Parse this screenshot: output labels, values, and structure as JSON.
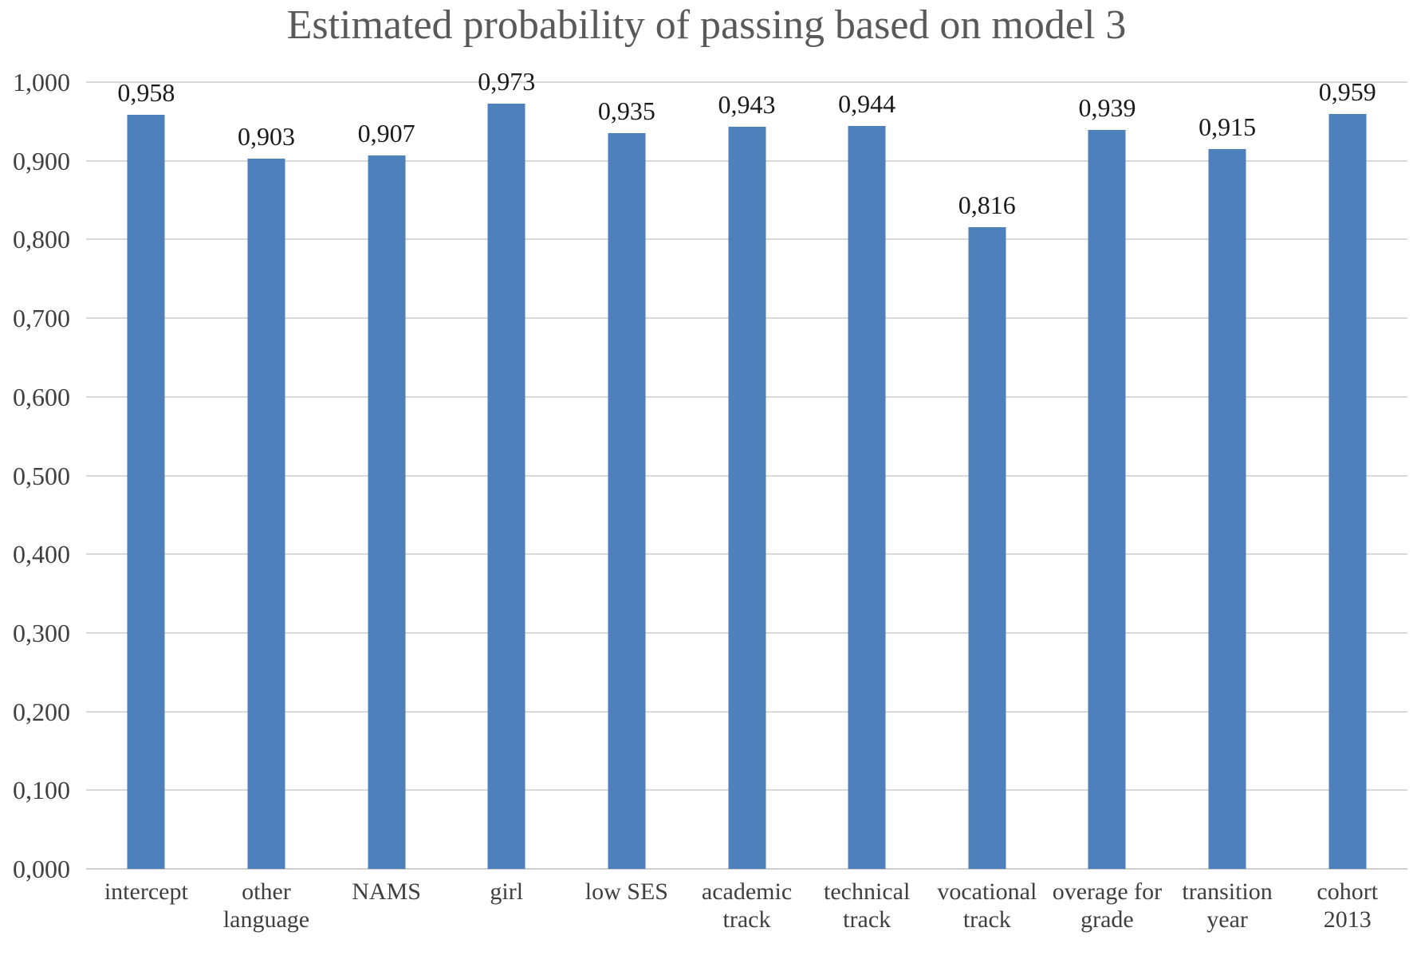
{
  "title": "Estimated probability of passing based on model 3",
  "chart_data": {
    "type": "bar",
    "title": "Estimated probability of passing based on model 3",
    "categories": [
      "intercept",
      "other language",
      "NAMS",
      "girl",
      "low SES",
      "academic track",
      "technical track",
      "vocational track",
      "overage for grade",
      "transition year",
      "cohort 2013"
    ],
    "values": [
      0.958,
      0.903,
      0.907,
      0.973,
      0.935,
      0.943,
      0.944,
      0.816,
      0.939,
      0.915,
      0.959
    ],
    "value_labels": [
      "0,958",
      "0,903",
      "0,907",
      "0,973",
      "0,935",
      "0,943",
      "0,944",
      "0,816",
      "0,939",
      "0,915",
      "0,959"
    ],
    "xlabel": "",
    "ylabel": "",
    "ylim": [
      0.0,
      1.0
    ],
    "ytick_step": 0.1,
    "ytick_labels": [
      "0,000",
      "0,100",
      "0,200",
      "0,300",
      "0,400",
      "0,500",
      "0,600",
      "0,700",
      "0,800",
      "0,900",
      "1,000"
    ],
    "grid": true,
    "legend": false,
    "decimal_separator": ",",
    "colors": {
      "bar": "#4e80bb",
      "gridline": "#d9d9d9",
      "title_text": "#595959",
      "tick_text": "#3f3f3f",
      "value_label_text": "#1a1a1a"
    }
  }
}
